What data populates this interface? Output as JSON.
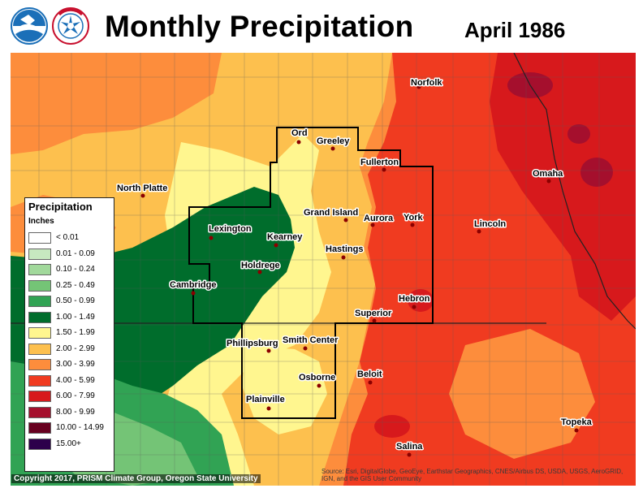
{
  "header": {
    "title": "Monthly Precipitation",
    "period": "April 1986"
  },
  "logos": [
    {
      "name": "NOAA",
      "icon": "noaa-logo-icon",
      "color": "#1b6fb8"
    },
    {
      "name": "National Weather Service",
      "icon": "nws-logo-icon",
      "color": "#1b6fb8",
      "ring_text": "NATIONAL WEATHER SERVICE"
    }
  ],
  "legend": {
    "title": "Precipitation",
    "units": "Inches",
    "items": [
      {
        "label": "< 0.01",
        "color": "#ffffff"
      },
      {
        "label": "0.01 - 0.09",
        "color": "#c7e9c0"
      },
      {
        "label": "0.10 - 0.24",
        "color": "#a1d99b"
      },
      {
        "label": "0.25 - 0.49",
        "color": "#74c476"
      },
      {
        "label": "0.50 - 0.99",
        "color": "#31a354"
      },
      {
        "label": "1.00 - 1.49",
        "color": "#006d2c"
      },
      {
        "label": "1.50 - 1.99",
        "color": "#fff68f"
      },
      {
        "label": "2.00 - 2.99",
        "color": "#fdc04e"
      },
      {
        "label": "3.00 - 3.99",
        "color": "#fd8d3c"
      },
      {
        "label": "4.00 - 5.99",
        "color": "#f03b20"
      },
      {
        "label": "6.00 - 7.99",
        "color": "#d7191c"
      },
      {
        "label": "8.00 - 9.99",
        "color": "#a50f2d"
      },
      {
        "label": "10.00 - 14.99",
        "color": "#67001f"
      },
      {
        "label": "15.00+",
        "color": "#2d004b"
      }
    ]
  },
  "cities": [
    {
      "name": "Norfolk"
    },
    {
      "name": "Ord"
    },
    {
      "name": "Greeley"
    },
    {
      "name": "Fullerton"
    },
    {
      "name": "Omaha"
    },
    {
      "name": "North Platte"
    },
    {
      "name": "Grand Island"
    },
    {
      "name": "Aurora"
    },
    {
      "name": "York"
    },
    {
      "name": "Lincoln"
    },
    {
      "name": "Lexington"
    },
    {
      "name": "Kearney"
    },
    {
      "name": "Hastings"
    },
    {
      "name": "Holdrege"
    },
    {
      "name": "Cambridge"
    },
    {
      "name": "Hebron"
    },
    {
      "name": "Superior"
    },
    {
      "name": "Phillipsburg"
    },
    {
      "name": "Smith Center"
    },
    {
      "name": "Osborne"
    },
    {
      "name": "Beloit"
    },
    {
      "name": "Plainville"
    },
    {
      "name": "Topeka"
    },
    {
      "name": "Salina"
    }
  ],
  "footer": {
    "copyright": "Copyright 2017, PRISM Climate Group, Oregon State University",
    "source": "Source: Esri, DigitalGlobe, GeoEye, Earthstar Geographics, CNES/Airbus DS, USDA, USGS, AeroGRID, IGN, and the GIS User Community"
  }
}
